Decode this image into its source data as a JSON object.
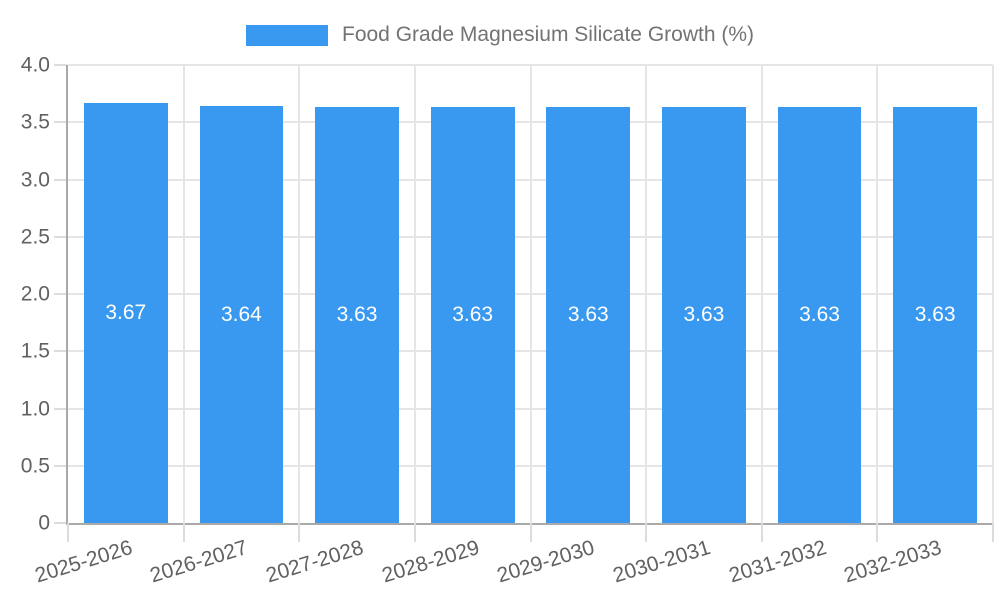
{
  "legend": {
    "label": "Food Grade Magnesium Silicate Growth (%)"
  },
  "chart_data": {
    "type": "bar",
    "title": "Food Grade Magnesium Silicate Growth (%)",
    "categories": [
      "2025-2026",
      "2026-2027",
      "2027-2028",
      "2028-2029",
      "2029-2030",
      "2030-2031",
      "2031-2032",
      "2032-2033"
    ],
    "values": [
      3.67,
      3.64,
      3.63,
      3.63,
      3.63,
      3.63,
      3.63,
      3.63
    ],
    "value_labels": [
      "3.67",
      "3.64",
      "3.63",
      "3.63",
      "3.63",
      "3.63",
      "3.63",
      "3.63"
    ],
    "xlabel": "",
    "ylabel": "",
    "ylim": [
      0,
      4
    ],
    "ytick_labels": [
      "4.0",
      "3.5",
      "3.0",
      "2.5",
      "2.0",
      "1.5",
      "1.0",
      "0.5",
      "0"
    ],
    "grid": true,
    "legend_position": "top-center",
    "xlabel_rotation_deg": -17
  },
  "colors": {
    "bar": "#3999F0",
    "grid": "#E5E5E5",
    "axis": "#A9A9A9",
    "tick_text": "#616161",
    "legend_text": "#737373",
    "value_text": "#FFFFFF",
    "background": "#FFFFFF"
  }
}
